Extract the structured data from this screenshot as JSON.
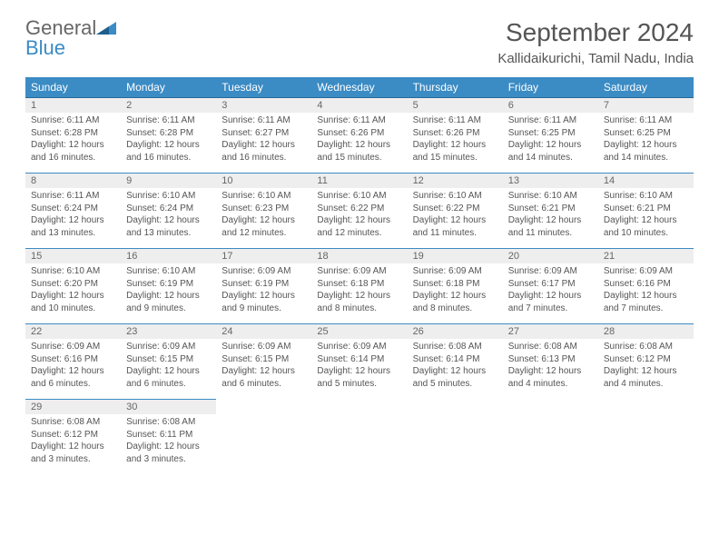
{
  "brand": {
    "text_gray": "General",
    "text_blue": "Blue"
  },
  "title": "September 2024",
  "location": "Kallidaikurichi, Tamil Nadu, India",
  "colors": {
    "header_bg": "#3b8bc4",
    "header_text": "#ffffff",
    "daynum_bg": "#eeeeee",
    "text": "#555555",
    "row_border": "#3b8bc4"
  },
  "weekdays": [
    "Sunday",
    "Monday",
    "Tuesday",
    "Wednesday",
    "Thursday",
    "Friday",
    "Saturday"
  ],
  "days": [
    {
      "n": 1,
      "sr": "6:11 AM",
      "ss": "6:28 PM",
      "dl": "12 hours and 16 minutes."
    },
    {
      "n": 2,
      "sr": "6:11 AM",
      "ss": "6:28 PM",
      "dl": "12 hours and 16 minutes."
    },
    {
      "n": 3,
      "sr": "6:11 AM",
      "ss": "6:27 PM",
      "dl": "12 hours and 16 minutes."
    },
    {
      "n": 4,
      "sr": "6:11 AM",
      "ss": "6:26 PM",
      "dl": "12 hours and 15 minutes."
    },
    {
      "n": 5,
      "sr": "6:11 AM",
      "ss": "6:26 PM",
      "dl": "12 hours and 15 minutes."
    },
    {
      "n": 6,
      "sr": "6:11 AM",
      "ss": "6:25 PM",
      "dl": "12 hours and 14 minutes."
    },
    {
      "n": 7,
      "sr": "6:11 AM",
      "ss": "6:25 PM",
      "dl": "12 hours and 14 minutes."
    },
    {
      "n": 8,
      "sr": "6:11 AM",
      "ss": "6:24 PM",
      "dl": "12 hours and 13 minutes."
    },
    {
      "n": 9,
      "sr": "6:10 AM",
      "ss": "6:24 PM",
      "dl": "12 hours and 13 minutes."
    },
    {
      "n": 10,
      "sr": "6:10 AM",
      "ss": "6:23 PM",
      "dl": "12 hours and 12 minutes."
    },
    {
      "n": 11,
      "sr": "6:10 AM",
      "ss": "6:22 PM",
      "dl": "12 hours and 12 minutes."
    },
    {
      "n": 12,
      "sr": "6:10 AM",
      "ss": "6:22 PM",
      "dl": "12 hours and 11 minutes."
    },
    {
      "n": 13,
      "sr": "6:10 AM",
      "ss": "6:21 PM",
      "dl": "12 hours and 11 minutes."
    },
    {
      "n": 14,
      "sr": "6:10 AM",
      "ss": "6:21 PM",
      "dl": "12 hours and 10 minutes."
    },
    {
      "n": 15,
      "sr": "6:10 AM",
      "ss": "6:20 PM",
      "dl": "12 hours and 10 minutes."
    },
    {
      "n": 16,
      "sr": "6:10 AM",
      "ss": "6:19 PM",
      "dl": "12 hours and 9 minutes."
    },
    {
      "n": 17,
      "sr": "6:09 AM",
      "ss": "6:19 PM",
      "dl": "12 hours and 9 minutes."
    },
    {
      "n": 18,
      "sr": "6:09 AM",
      "ss": "6:18 PM",
      "dl": "12 hours and 8 minutes."
    },
    {
      "n": 19,
      "sr": "6:09 AM",
      "ss": "6:18 PM",
      "dl": "12 hours and 8 minutes."
    },
    {
      "n": 20,
      "sr": "6:09 AM",
      "ss": "6:17 PM",
      "dl": "12 hours and 7 minutes."
    },
    {
      "n": 21,
      "sr": "6:09 AM",
      "ss": "6:16 PM",
      "dl": "12 hours and 7 minutes."
    },
    {
      "n": 22,
      "sr": "6:09 AM",
      "ss": "6:16 PM",
      "dl": "12 hours and 6 minutes."
    },
    {
      "n": 23,
      "sr": "6:09 AM",
      "ss": "6:15 PM",
      "dl": "12 hours and 6 minutes."
    },
    {
      "n": 24,
      "sr": "6:09 AM",
      "ss": "6:15 PM",
      "dl": "12 hours and 6 minutes."
    },
    {
      "n": 25,
      "sr": "6:09 AM",
      "ss": "6:14 PM",
      "dl": "12 hours and 5 minutes."
    },
    {
      "n": 26,
      "sr": "6:08 AM",
      "ss": "6:14 PM",
      "dl": "12 hours and 5 minutes."
    },
    {
      "n": 27,
      "sr": "6:08 AM",
      "ss": "6:13 PM",
      "dl": "12 hours and 4 minutes."
    },
    {
      "n": 28,
      "sr": "6:08 AM",
      "ss": "6:12 PM",
      "dl": "12 hours and 4 minutes."
    },
    {
      "n": 29,
      "sr": "6:08 AM",
      "ss": "6:12 PM",
      "dl": "12 hours and 3 minutes."
    },
    {
      "n": 30,
      "sr": "6:08 AM",
      "ss": "6:11 PM",
      "dl": "12 hours and 3 minutes."
    }
  ],
  "labels": {
    "sunrise": "Sunrise:",
    "sunset": "Sunset:",
    "daylight": "Daylight:"
  },
  "grid": {
    "start_weekday": 0,
    "total_days": 30,
    "cols": 7
  }
}
